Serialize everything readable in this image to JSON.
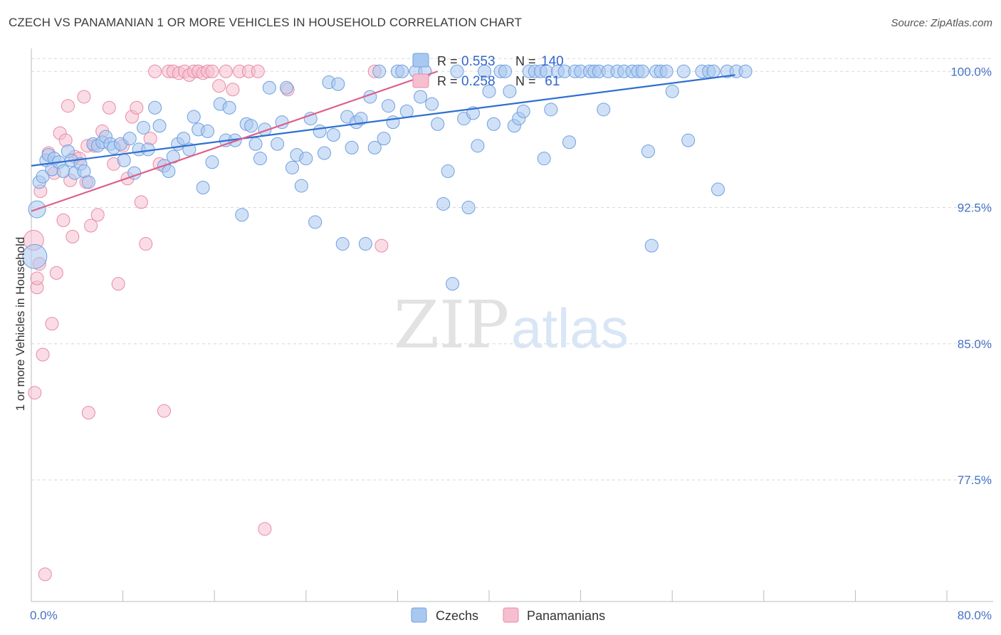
{
  "title": "CZECH VS PANAMANIAN 1 OR MORE VEHICLES IN HOUSEHOLD CORRELATION CHART",
  "source": "Source: ZipAtlas.com",
  "watermark": {
    "zip": "ZIP",
    "atlas": "atlas"
  },
  "colors": {
    "czech_fill": "#a9c8f0",
    "czech_stroke": "#6f9fdf",
    "czech_line": "#2f6fd0",
    "pan_fill": "#f6bfd0",
    "pan_stroke": "#e88aa8",
    "pan_line": "#de5f8a",
    "grid": "#d8d8d8",
    "tick_label": "#4472c4"
  },
  "legend": {
    "r_label": "R =",
    "n_label": "N =",
    "rows": [
      {
        "series": "Czechs",
        "r": "0.553",
        "n": "140"
      },
      {
        "series": "Panamanians",
        "r": "0.258",
        "n": " 61"
      }
    ]
  },
  "chart_data": {
    "type": "scatter",
    "title": "CZECH VS PANAMANIAN 1 OR MORE VEHICLES IN HOUSEHOLD CORRELATION CHART",
    "xlabel": "",
    "ylabel": "1 or more Vehicles in Household",
    "xlim": [
      0,
      80
    ],
    "ylim": [
      70.8,
      101.5
    ],
    "x_tick_labels": [
      "0.0%",
      "80.0%"
    ],
    "y_ticks": [
      77.5,
      85.0,
      92.5,
      100.0
    ],
    "y_tick_labels": [
      "77.5%",
      "85.0%",
      "92.5%",
      "100.0%"
    ],
    "grid": true,
    "series": [
      {
        "name": "Czechs",
        "trend": {
          "x": [
            0,
            61.5
          ],
          "y": [
            94.8,
            99.8
          ]
        },
        "points": [
          [
            0.3,
            89.8
          ],
          [
            0.5,
            92.4
          ],
          [
            0.7,
            93.9
          ],
          [
            1.0,
            94.2
          ],
          [
            1.3,
            95.1
          ],
          [
            1.5,
            95.4
          ],
          [
            1.8,
            94.6
          ],
          [
            2.0,
            95.2
          ],
          [
            2.4,
            95.0
          ],
          [
            2.8,
            94.5
          ],
          [
            3.2,
            95.6
          ],
          [
            3.5,
            95.1
          ],
          [
            3.8,
            94.4
          ],
          [
            4.3,
            94.9
          ],
          [
            4.6,
            94.5
          ],
          [
            5.0,
            93.9
          ],
          [
            5.4,
            96.0
          ],
          [
            5.8,
            95.9
          ],
          [
            6.2,
            96.1
          ],
          [
            6.5,
            96.4
          ],
          [
            6.9,
            96.0
          ],
          [
            7.2,
            95.8
          ],
          [
            7.8,
            96.0
          ],
          [
            8.1,
            95.1
          ],
          [
            8.6,
            96.3
          ],
          [
            9.0,
            94.4
          ],
          [
            9.4,
            95.7
          ],
          [
            9.8,
            96.9
          ],
          [
            10.2,
            95.7
          ],
          [
            10.8,
            98.0
          ],
          [
            11.2,
            97.0
          ],
          [
            11.6,
            94.8
          ],
          [
            12.0,
            94.5
          ],
          [
            12.4,
            95.3
          ],
          [
            12.8,
            96.0
          ],
          [
            13.3,
            96.3
          ],
          [
            13.8,
            95.7
          ],
          [
            14.2,
            97.5
          ],
          [
            14.6,
            96.8
          ],
          [
            15.0,
            93.6
          ],
          [
            15.4,
            96.7
          ],
          [
            15.8,
            95.0
          ],
          [
            16.5,
            98.2
          ],
          [
            17.0,
            96.2
          ],
          [
            17.3,
            98.0
          ],
          [
            17.8,
            96.2
          ],
          [
            18.4,
            92.1
          ],
          [
            18.8,
            97.1
          ],
          [
            19.2,
            97.0
          ],
          [
            19.6,
            96.0
          ],
          [
            20.0,
            95.2
          ],
          [
            20.4,
            96.8
          ],
          [
            20.8,
            99.1
          ],
          [
            21.5,
            96.0
          ],
          [
            21.9,
            97.2
          ],
          [
            22.3,
            99.1
          ],
          [
            22.8,
            94.7
          ],
          [
            23.2,
            95.4
          ],
          [
            23.6,
            93.7
          ],
          [
            24.0,
            95.2
          ],
          [
            24.4,
            97.4
          ],
          [
            24.8,
            91.7
          ],
          [
            25.2,
            96.7
          ],
          [
            25.6,
            95.5
          ],
          [
            26.0,
            99.4
          ],
          [
            26.4,
            96.5
          ],
          [
            26.8,
            99.3
          ],
          [
            27.2,
            90.5
          ],
          [
            27.6,
            97.5
          ],
          [
            28.0,
            95.8
          ],
          [
            28.4,
            97.2
          ],
          [
            28.8,
            97.4
          ],
          [
            29.2,
            90.5
          ],
          [
            29.6,
            98.6
          ],
          [
            30.0,
            95.8
          ],
          [
            30.4,
            100.0
          ],
          [
            30.8,
            96.3
          ],
          [
            31.2,
            98.1
          ],
          [
            31.6,
            97.2
          ],
          [
            32.0,
            100.0
          ],
          [
            32.4,
            100.0
          ],
          [
            32.8,
            97.8
          ],
          [
            33.6,
            100.0
          ],
          [
            34.0,
            98.6
          ],
          [
            34.4,
            100.0
          ],
          [
            35.0,
            98.2
          ],
          [
            35.5,
            97.1
          ],
          [
            36.0,
            92.7
          ],
          [
            36.4,
            94.5
          ],
          [
            36.8,
            88.3
          ],
          [
            37.2,
            100.0
          ],
          [
            37.8,
            97.4
          ],
          [
            38.2,
            92.5
          ],
          [
            38.6,
            97.7
          ],
          [
            39.0,
            95.9
          ],
          [
            39.6,
            100.0
          ],
          [
            40.0,
            98.9
          ],
          [
            40.4,
            97.1
          ],
          [
            41.0,
            100.0
          ],
          [
            41.4,
            100.0
          ],
          [
            41.8,
            98.9
          ],
          [
            42.2,
            97.0
          ],
          [
            42.6,
            97.4
          ],
          [
            43.0,
            97.8
          ],
          [
            43.5,
            100.0
          ],
          [
            44.0,
            100.0
          ],
          [
            44.5,
            100.0
          ],
          [
            44.8,
            95.2
          ],
          [
            45.0,
            100.0
          ],
          [
            45.4,
            97.9
          ],
          [
            46.0,
            100.0
          ],
          [
            46.6,
            100.0
          ],
          [
            47.0,
            96.1
          ],
          [
            47.5,
            100.0
          ],
          [
            48.0,
            100.0
          ],
          [
            48.8,
            100.0
          ],
          [
            49.2,
            100.0
          ],
          [
            49.6,
            100.0
          ],
          [
            50.0,
            97.9
          ],
          [
            50.4,
            100.0
          ],
          [
            51.2,
            100.0
          ],
          [
            51.8,
            100.0
          ],
          [
            52.5,
            100.0
          ],
          [
            53.0,
            100.0
          ],
          [
            53.4,
            100.0
          ],
          [
            53.9,
            95.6
          ],
          [
            54.2,
            90.4
          ],
          [
            54.6,
            100.0
          ],
          [
            55.0,
            100.0
          ],
          [
            55.5,
            100.0
          ],
          [
            56.0,
            98.9
          ],
          [
            57.0,
            100.0
          ],
          [
            57.4,
            96.2
          ],
          [
            58.6,
            100.0
          ],
          [
            59.2,
            100.0
          ],
          [
            59.6,
            100.0
          ],
          [
            60.0,
            93.5
          ],
          [
            60.8,
            100.0
          ],
          [
            61.6,
            100.0
          ],
          [
            62.4,
            100.0
          ]
        ]
      },
      {
        "name": "Panamanians",
        "trend": {
          "x": [
            0,
            35.5
          ],
          "y": [
            92.3,
            100.0
          ]
        },
        "points": [
          [
            0.2,
            90.7
          ],
          [
            0.3,
            82.3
          ],
          [
            0.5,
            88.1
          ],
          [
            0.5,
            88.6
          ],
          [
            0.7,
            89.4
          ],
          [
            0.8,
            93.4
          ],
          [
            1.0,
            84.4
          ],
          [
            1.2,
            72.3
          ],
          [
            1.5,
            95.5
          ],
          [
            1.8,
            86.1
          ],
          [
            2.0,
            94.4
          ],
          [
            2.2,
            88.9
          ],
          [
            2.5,
            96.6
          ],
          [
            2.8,
            91.8
          ],
          [
            3.0,
            96.2
          ],
          [
            3.2,
            98.1
          ],
          [
            3.4,
            94.0
          ],
          [
            3.6,
            90.9
          ],
          [
            3.8,
            95.3
          ],
          [
            4.2,
            95.2
          ],
          [
            4.6,
            98.6
          ],
          [
            4.8,
            93.9
          ],
          [
            4.9,
            95.9
          ],
          [
            5.0,
            81.2
          ],
          [
            5.2,
            91.5
          ],
          [
            5.5,
            95.9
          ],
          [
            5.8,
            92.1
          ],
          [
            6.2,
            96.7
          ],
          [
            6.8,
            98.0
          ],
          [
            7.2,
            94.9
          ],
          [
            7.6,
            88.3
          ],
          [
            8.0,
            95.9
          ],
          [
            8.4,
            94.1
          ],
          [
            8.8,
            97.5
          ],
          [
            9.2,
            98.0
          ],
          [
            9.6,
            92.8
          ],
          [
            10.0,
            90.5
          ],
          [
            10.4,
            96.3
          ],
          [
            10.8,
            100.0
          ],
          [
            11.2,
            94.9
          ],
          [
            11.6,
            81.3
          ],
          [
            12.0,
            100.0
          ],
          [
            12.4,
            100.0
          ],
          [
            12.9,
            99.9
          ],
          [
            13.4,
            100.0
          ],
          [
            13.8,
            99.8
          ],
          [
            14.2,
            100.0
          ],
          [
            14.6,
            100.0
          ],
          [
            15.0,
            99.9
          ],
          [
            15.4,
            100.0
          ],
          [
            15.8,
            100.0
          ],
          [
            16.4,
            99.2
          ],
          [
            17.0,
            100.0
          ],
          [
            17.6,
            99.0
          ],
          [
            18.2,
            100.0
          ],
          [
            19.0,
            100.0
          ],
          [
            19.8,
            100.0
          ],
          [
            20.4,
            74.8
          ],
          [
            22.4,
            99.0
          ],
          [
            30.0,
            100.0
          ],
          [
            30.6,
            90.4
          ]
        ]
      }
    ]
  }
}
